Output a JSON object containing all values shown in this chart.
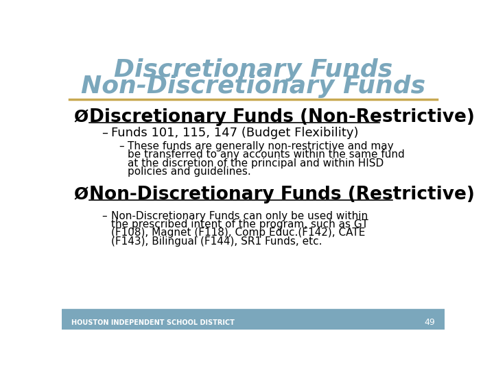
{
  "title_line1": "Discretionary Funds",
  "title_line2": "Non-Discretionary Funds",
  "title_color": "#7ba7bc",
  "separator_color": "#c8a951",
  "bg_color": "#ffffff",
  "footer_bg": "#7ba7bc",
  "footer_text": "HOUSTON INDEPENDENT SCHOOL DISTRICT",
  "footer_text_color": "#ffffff",
  "page_number": "49",
  "bullet1_text": "Discretionary Funds (Non-Restrictive)",
  "bullet1_color": "#000000",
  "sub1_text": "Funds 101, 115, 147 (Budget Flexibility)",
  "sub1_color": "#000000",
  "sub2_lines": [
    "These funds are generally non-restrictive and may",
    "be transferred to any accounts within the same fund",
    "at the discretion of the principal and within HISD",
    "policies and guidelines."
  ],
  "sub2_color": "#000000",
  "bullet2_text": "Non-Discretionary Funds (Restrictive)",
  "bullet2_color": "#000000",
  "sub3_lines": [
    "Non-Discretionary Funds can only be used within",
    "the prescribed intent of the program, such as GT",
    "(F108), Magnet (F118), Comp Educ.(F142), CATE",
    "(F143), Bilingual (F144), SR1 Funds, etc."
  ],
  "sub3_color": "#000000",
  "arrow_color": "#000000"
}
